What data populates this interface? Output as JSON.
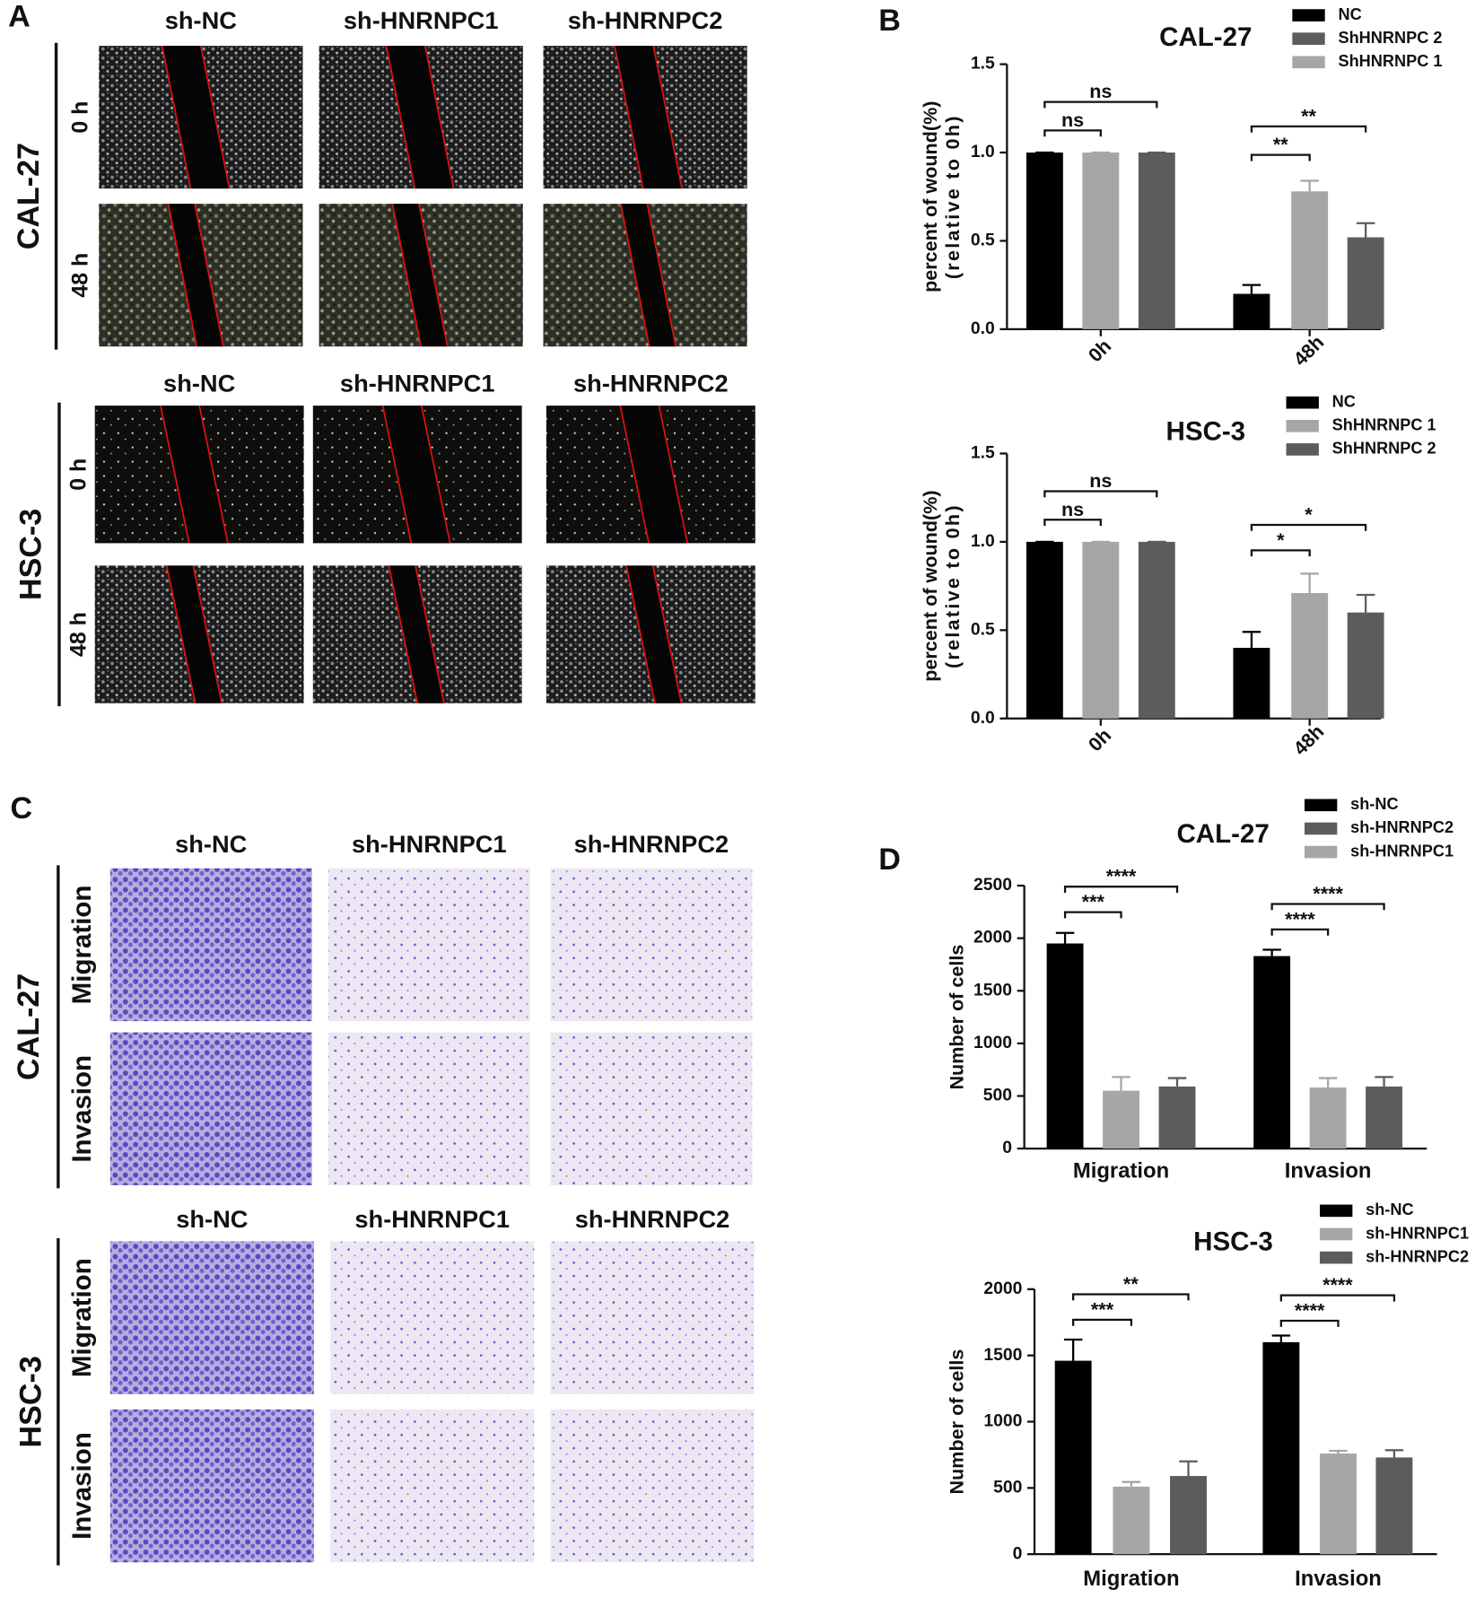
{
  "figure": {
    "panel_labels": [
      "A",
      "B",
      "C",
      "D"
    ],
    "wound": {
      "cal27": {
        "cell_line": "CAL-27",
        "columns": [
          "sh-NC",
          "sh-HNRNPC1",
          "sh-HNRNPC2"
        ],
        "rows": [
          "0 h",
          "48 h"
        ]
      },
      "hsc3": {
        "cell_line": "HSC-3",
        "columns": [
          "sh-NC",
          "sh-HNRNPC1",
          "sh-HNRNPC2"
        ],
        "rows": [
          "0 h",
          "48 h"
        ]
      }
    },
    "transwell": {
      "cal27": {
        "cell_line": "CAL-27",
        "columns": [
          "sh-NC",
          "sh-HNRNPC1",
          "sh-HNRNPC2"
        ],
        "rows": [
          "Migration",
          "Invasion"
        ]
      },
      "hsc3": {
        "cell_line": "HSC-3",
        "columns": [
          "sh-NC",
          "sh-HNRNPC1",
          "sh-HNRNPC2"
        ],
        "rows": [
          "Migration",
          "Invasion"
        ]
      }
    }
  },
  "chart_data": [
    {
      "type": "bar",
      "title": "CAL-27",
      "ylabel": [
        "percent of wound(%)",
        "(relative to 0h)"
      ],
      "categories": [
        "0h",
        "48h"
      ],
      "x_label_rotation": -45,
      "series": [
        {
          "name": "NC",
          "color": "#000000",
          "values": [
            1.0,
            0.2
          ],
          "errors": [
            0,
            0.05
          ]
        },
        {
          "name": "ShHNRNPC 2",
          "color": "#5c5c5c",
          "values": [
            1.0,
            0.52
          ],
          "errors": [
            0,
            0.08
          ]
        },
        {
          "name": "ShHNRNPC 1",
          "color": "#a6a6a6",
          "values": [
            1.0,
            0.78
          ],
          "errors": [
            0,
            0.06
          ]
        }
      ],
      "bar_order": [
        0,
        2,
        1
      ],
      "ylim": [
        0,
        1.5
      ],
      "yticks": [
        {
          "value": 0,
          "label": "0.0"
        },
        0.5,
        {
          "value": 1,
          "label": "1.0"
        },
        1.5
      ],
      "annotations": [
        {
          "label": "ns",
          "category": "0h",
          "between": [
            "NC",
            "ShHNRNPC 1"
          ]
        },
        {
          "label": "ns",
          "category": "0h",
          "between": [
            "NC",
            "ShHNRNPC 2"
          ]
        },
        {
          "label": "**",
          "category": "48h",
          "between": [
            "NC",
            "ShHNRNPC 1"
          ]
        },
        {
          "label": "**",
          "category": "48h",
          "between": [
            "NC",
            "ShHNRNPC 2"
          ]
        }
      ]
    },
    {
      "type": "bar",
      "title": "HSC-3",
      "ylabel": [
        "percent of wound(%)",
        "(relative to 0h)"
      ],
      "categories": [
        "0h",
        "48h"
      ],
      "x_label_rotation": -45,
      "series": [
        {
          "name": "NC",
          "color": "#000000",
          "values": [
            1.0,
            0.4
          ],
          "errors": [
            0,
            0.09
          ]
        },
        {
          "name": "ShHNRNPC 1",
          "color": "#a6a6a6",
          "values": [
            1.0,
            0.71
          ],
          "errors": [
            0,
            0.11
          ]
        },
        {
          "name": "ShHNRNPC 2",
          "color": "#5c5c5c",
          "values": [
            1.0,
            0.6
          ],
          "errors": [
            0,
            0.1
          ]
        }
      ],
      "ylim": [
        0,
        1.5
      ],
      "yticks": [
        {
          "value": 0,
          "label": "0.0"
        },
        0.5,
        {
          "value": 1,
          "label": "1.0"
        },
        1.5
      ],
      "annotations": [
        {
          "label": "ns",
          "category": "0h",
          "between": [
            "NC",
            "ShHNRNPC 1"
          ]
        },
        {
          "label": "ns",
          "category": "0h",
          "between": [
            "NC",
            "ShHNRNPC 2"
          ]
        },
        {
          "label": "*",
          "category": "48h",
          "between": [
            "NC",
            "ShHNRNPC 1"
          ]
        },
        {
          "label": "*",
          "category": "48h",
          "between": [
            "NC",
            "ShHNRNPC 2"
          ]
        }
      ]
    },
    {
      "type": "bar",
      "title": "CAL-27",
      "ylabel": [
        "Number of cells"
      ],
      "categories": [
        "Migration",
        "Invasion"
      ],
      "x_label_rotation": 0,
      "series": [
        {
          "name": "sh-NC",
          "color": "#000000",
          "values": [
            1950,
            1830
          ],
          "errors": [
            100,
            60
          ]
        },
        {
          "name": "sh-HNRNPC2",
          "color": "#5c5c5c",
          "values": [
            590,
            590
          ],
          "errors": [
            80,
            90
          ]
        },
        {
          "name": "sh-HNRNPC1",
          "color": "#a6a6a6",
          "values": [
            550,
            580
          ],
          "errors": [
            130,
            90
          ]
        }
      ],
      "bar_order": [
        0,
        2,
        1
      ],
      "ylim": [
        0,
        2500
      ],
      "yticks": [
        0,
        500,
        1000,
        1500,
        2000,
        2500
      ],
      "annotations": [
        {
          "label": "***",
          "category": "Migration",
          "between": [
            "sh-NC",
            "sh-HNRNPC1"
          ]
        },
        {
          "label": "****",
          "category": "Migration",
          "between": [
            "sh-NC",
            "sh-HNRNPC2"
          ]
        },
        {
          "label": "****",
          "category": "Invasion",
          "between": [
            "sh-NC",
            "sh-HNRNPC1"
          ]
        },
        {
          "label": "****",
          "category": "Invasion",
          "between": [
            "sh-NC",
            "sh-HNRNPC2"
          ]
        }
      ]
    },
    {
      "type": "bar",
      "title": "HSC-3",
      "ylabel": [
        "Number of cells"
      ],
      "categories": [
        "Migration",
        "Invasion"
      ],
      "x_label_rotation": 0,
      "series": [
        {
          "name": "sh-NC",
          "color": "#000000",
          "values": [
            1460,
            1600
          ],
          "errors": [
            160,
            50
          ]
        },
        {
          "name": "sh-HNRNPC1",
          "color": "#a6a6a6",
          "values": [
            510,
            760
          ],
          "errors": [
            35,
            20
          ]
        },
        {
          "name": "sh-HNRNPC2",
          "color": "#5c5c5c",
          "values": [
            590,
            730
          ],
          "errors": [
            110,
            55
          ]
        }
      ],
      "ylim": [
        0,
        2000
      ],
      "yticks": [
        0,
        500,
        1000,
        1500,
        2000
      ],
      "annotations": [
        {
          "label": "***",
          "category": "Migration",
          "between": [
            "sh-NC",
            "sh-HNRNPC1"
          ]
        },
        {
          "label": "**",
          "category": "Migration",
          "between": [
            "sh-NC",
            "sh-HNRNPC2"
          ]
        },
        {
          "label": "****",
          "category": "Invasion",
          "between": [
            "sh-NC",
            "sh-HNRNPC1"
          ]
        },
        {
          "label": "****",
          "category": "Invasion",
          "between": [
            "sh-NC",
            "sh-HNRNPC2"
          ]
        }
      ]
    }
  ]
}
